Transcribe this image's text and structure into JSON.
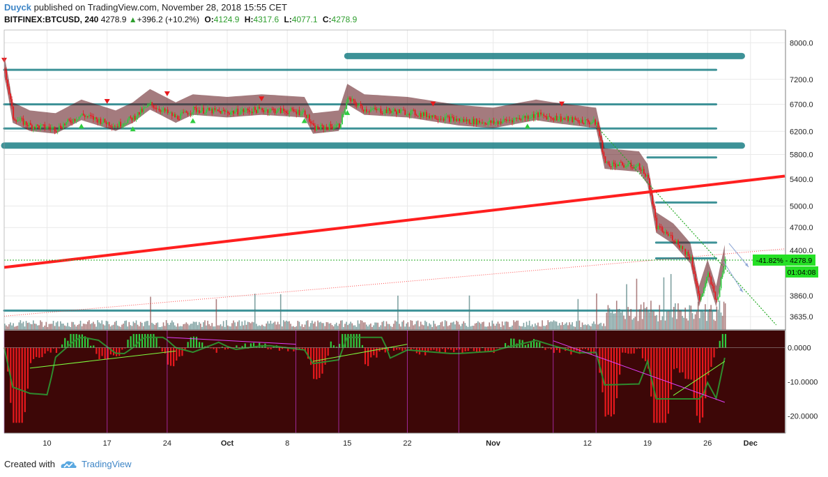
{
  "header": {
    "author": "Duyck",
    "published_text": "published on TradingView.com, November 28, 2018 15:55 CET",
    "symbol": "BITFINEX:BTCUSD, 240",
    "last": "4278.9",
    "change": "+396.2 (+10.2%)",
    "open_label": "O:",
    "open": "4124.9",
    "high_label": "H:",
    "high": "4317.6",
    "low_label": "L:",
    "low": "4077.1",
    "close_label": "C:",
    "close": "4278.9"
  },
  "footer": {
    "created_with": "Created with",
    "brand": "TradingView"
  },
  "colors": {
    "up": "#2ecc40",
    "down": "#e8191d",
    "trend": "#ff1f1f",
    "band": "#1c7f86",
    "cloud": "#5a0f14",
    "grid": "#e9e9e9",
    "osc_bg": "#3d0707",
    "magenta": "#e040fb",
    "lime": "#7fff3f",
    "price_tag": "#25e025"
  },
  "chart_data": [
    {
      "type": "candlestick",
      "symbol": "BITFINEX:BTCUSD",
      "timeframe": "240",
      "x_ticks": [
        {
          "label": "10",
          "date": "2018-09-10"
        },
        {
          "label": "17",
          "date": "2018-09-17"
        },
        {
          "label": "24",
          "date": "2018-09-24"
        },
        {
          "label": "Oct",
          "date": "2018-10-01"
        },
        {
          "label": "8",
          "date": "2018-10-08"
        },
        {
          "label": "15",
          "date": "2018-10-15"
        },
        {
          "label": "22",
          "date": "2018-10-22"
        },
        {
          "label": "Nov",
          "date": "2018-11-01"
        },
        {
          "label": "12",
          "date": "2018-11-12"
        },
        {
          "label": "19",
          "date": "2018-11-19"
        },
        {
          "label": "26",
          "date": "2018-11-26"
        },
        {
          "label": "Dec",
          "date": "2018-12-01"
        }
      ],
      "y_ticks": [
        "8000.0",
        "7200.0",
        "6700.0",
        "6200.0",
        "5800.0",
        "5400.0",
        "5000.0",
        "4700.0",
        "4400.0",
        "3860.0",
        "3635.0"
      ],
      "y_scale": "log",
      "ylim": [
        3500,
        8300
      ],
      "price_path": [
        {
          "date": "2018-09-05",
          "price": 7400
        },
        {
          "date": "2018-09-06",
          "price": 6450
        },
        {
          "date": "2018-09-08",
          "price": 6300
        },
        {
          "date": "2018-09-11",
          "price": 6250
        },
        {
          "date": "2018-09-14",
          "price": 6500
        },
        {
          "date": "2018-09-18",
          "price": 6300
        },
        {
          "date": "2018-09-20",
          "price": 6450
        },
        {
          "date": "2018-09-22",
          "price": 6700
        },
        {
          "date": "2018-09-25",
          "price": 6450
        },
        {
          "date": "2018-09-27",
          "price": 6600
        },
        {
          "date": "2018-10-01",
          "price": 6550
        },
        {
          "date": "2018-10-05",
          "price": 6600
        },
        {
          "date": "2018-10-10",
          "price": 6550
        },
        {
          "date": "2018-10-11",
          "price": 6250
        },
        {
          "date": "2018-10-14",
          "price": 6300
        },
        {
          "date": "2018-10-15",
          "price": 6800
        },
        {
          "date": "2018-10-17",
          "price": 6600
        },
        {
          "date": "2018-10-22",
          "price": 6550
        },
        {
          "date": "2018-10-28",
          "price": 6400
        },
        {
          "date": "2018-11-01",
          "price": 6350
        },
        {
          "date": "2018-11-06",
          "price": 6500
        },
        {
          "date": "2018-11-08",
          "price": 6450
        },
        {
          "date": "2018-11-13",
          "price": 6350
        },
        {
          "date": "2018-11-14",
          "price": 5650
        },
        {
          "date": "2018-11-18",
          "price": 5600
        },
        {
          "date": "2018-11-19",
          "price": 5400
        },
        {
          "date": "2018-11-20",
          "price": 4700
        },
        {
          "date": "2018-11-22",
          "price": 4550
        },
        {
          "date": "2018-11-24",
          "price": 4300
        },
        {
          "date": "2018-11-25",
          "price": 3800
        },
        {
          "date": "2018-11-26",
          "price": 4100
        },
        {
          "date": "2018-11-27",
          "price": 3800
        },
        {
          "date": "2018-11-28",
          "price": 4279
        }
      ],
      "horizontal_levels": [
        7700,
        7400,
        6700,
        6250,
        5950,
        5750,
        5050,
        4500,
        4300,
        3700
      ],
      "trendline": {
        "from": {
          "date": "2018-09-05",
          "price": 4190
        },
        "to": {
          "date": "2018-12-05",
          "price": 5450
        }
      },
      "last_price_line": 4278.9,
      "price_tags": [
        {
          "text": "-41.82% - 4278.9"
        },
        {
          "text": "01:04:08"
        }
      ]
    },
    {
      "type": "bar",
      "panel": "oscillator",
      "y_ticks": [
        "0.0000",
        "-10.0000",
        "-20.0000"
      ],
      "ylim": [
        -25,
        5
      ]
    }
  ]
}
